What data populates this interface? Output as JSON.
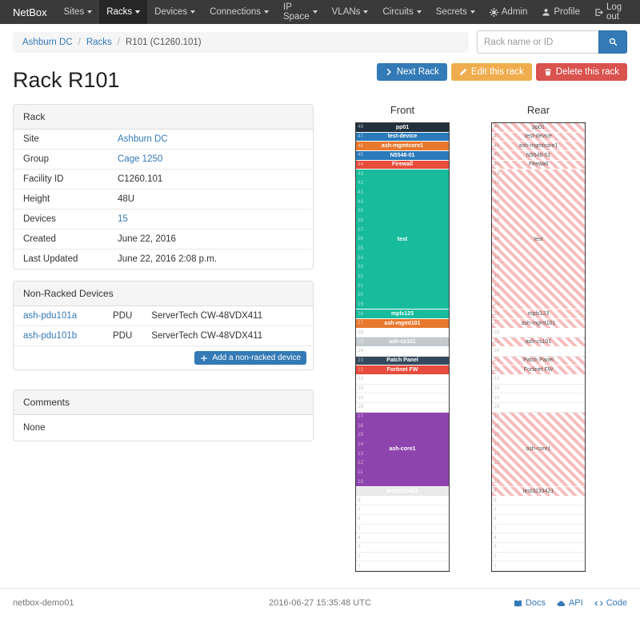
{
  "navbar": {
    "brand": "NetBox",
    "items": [
      {
        "label": "Sites",
        "active": false
      },
      {
        "label": "Racks",
        "active": true
      },
      {
        "label": "Devices",
        "active": false
      },
      {
        "label": "Connections",
        "active": false
      },
      {
        "label": "IP Space",
        "active": false
      },
      {
        "label": "VLANs",
        "active": false
      },
      {
        "label": "Circuits",
        "active": false
      },
      {
        "label": "Secrets",
        "active": false
      }
    ],
    "right_items": [
      {
        "label": "Admin",
        "icon": "gear-icon"
      },
      {
        "label": "Profile",
        "icon": "user-icon"
      },
      {
        "label": "Log out",
        "icon": "log-out-icon"
      }
    ]
  },
  "breadcrumb": {
    "items": [
      {
        "label": "Ashburn DC",
        "link": true
      },
      {
        "label": "Racks",
        "link": true
      },
      {
        "label": "R101 (C1260.101)",
        "link": false
      }
    ]
  },
  "search": {
    "placeholder": "Rack name or ID",
    "button_icon": "search-icon"
  },
  "actions": {
    "next_rack": "Next Rack",
    "edit_rack": "Edit this rack",
    "delete_rack": "Delete this rack"
  },
  "page_title": "Rack R101",
  "rack_info": {
    "title": "Rack",
    "rows": [
      {
        "label": "Site",
        "value": "Ashburn DC",
        "link": true
      },
      {
        "label": "Group",
        "value": "Cage 1250",
        "link": true
      },
      {
        "label": "Facility ID",
        "value": "C1260.101",
        "link": false
      },
      {
        "label": "Height",
        "value": "48U",
        "link": false
      },
      {
        "label": "Devices",
        "value": "15",
        "link": true
      },
      {
        "label": "Created",
        "value": "June 22, 2016",
        "link": false
      },
      {
        "label": "Last Updated",
        "value": "June 22, 2016 2:08 p.m.",
        "link": false
      }
    ]
  },
  "non_racked": {
    "title": "Non-Racked Devices",
    "devices": [
      {
        "name": "ash-pdu101a",
        "role": "PDU",
        "type": "ServerTech CW-48VDX411"
      },
      {
        "name": "ash-pdu101b",
        "role": "PDU",
        "type": "ServerTech CW-48VDX411"
      }
    ],
    "add_label": "Add a non-racked device"
  },
  "comments": {
    "title": "Comments",
    "body": "None"
  },
  "elevation": {
    "u_height": 48,
    "front_title": "Front",
    "rear_title": "Rear",
    "rear_stripe_color": "#f7bcbc",
    "rear_text_color": "#555555",
    "devices": [
      {
        "name": "pp01",
        "top_u": 48,
        "u_height": 1,
        "color": "#22303d",
        "text": "#ffffff"
      },
      {
        "name": "test-device",
        "top_u": 47,
        "u_height": 1,
        "color": "#2a7ab9",
        "text": "#ffffff"
      },
      {
        "name": "ash-mgmtcore1",
        "top_u": 46,
        "u_height": 1,
        "color": "#e8782d",
        "text": "#ffffff"
      },
      {
        "name": "N5548-01",
        "top_u": 45,
        "u_height": 1,
        "color": "#2a7ab9",
        "text": "#ffffff"
      },
      {
        "name": "Firewall",
        "top_u": 44,
        "u_height": 1,
        "color": "#e74c3c",
        "text": "#ffffff"
      },
      {
        "name": "test",
        "top_u": 43,
        "u_height": 15,
        "color": "#18bc9c",
        "text": "#ffffff"
      },
      {
        "name": "mpls123",
        "top_u": 28,
        "u_height": 1,
        "color": "#18bc9c",
        "text": "#ffffff"
      },
      {
        "name": "ash-mgmt101",
        "top_u": 27,
        "u_height": 1,
        "color": "#e8782d",
        "text": "#ffffff"
      },
      {
        "name": "ash-cs101",
        "top_u": 25,
        "u_height": 1,
        "color": "#c3c9cc",
        "text": "#ffffff"
      },
      {
        "name": "Patch Panel",
        "top_u": 23,
        "u_height": 1,
        "color": "#34495e",
        "text": "#ffffff"
      },
      {
        "name": "Fortinet FW",
        "top_u": 22,
        "u_height": 1,
        "color": "#e74c3c",
        "text": "#ffffff"
      },
      {
        "name": "ash-core1",
        "top_u": 17,
        "u_height": 8,
        "color": "#8e44ad",
        "text": "#ffffff"
      },
      {
        "name": "test3233421",
        "top_u": 9,
        "u_height": 1,
        "color": "#e9e9e9",
        "text": "#ffffff"
      }
    ]
  },
  "footer": {
    "hostname": "netbox-demo01",
    "timestamp": "2016-06-27 15:35:48 UTC",
    "links": [
      {
        "label": "Docs",
        "icon": "book-icon"
      },
      {
        "label": "API",
        "icon": "cloud-icon"
      },
      {
        "label": "Code",
        "icon": "code-icon"
      }
    ]
  },
  "colors": {
    "accent": "#337ab7",
    "warning": "#f0ad4e",
    "danger": "#d9534f",
    "navbar_bg": "#3a3a3a"
  }
}
